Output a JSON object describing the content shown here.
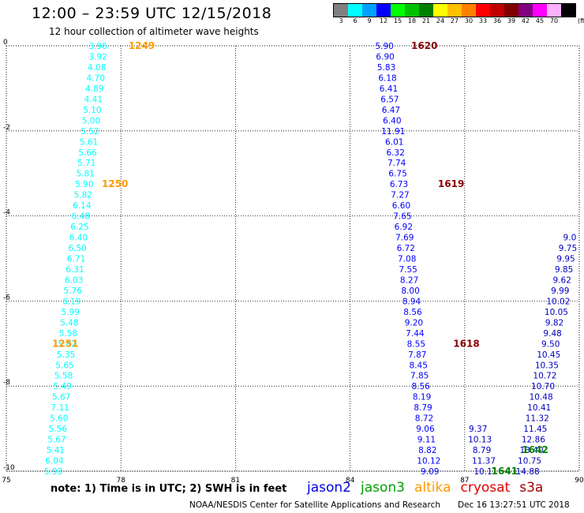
{
  "header": {
    "title": "12:00 – 23:59 UTC 12/15/2018",
    "subtitle": "12 hour collection of altimeter wave heights"
  },
  "legend": {
    "unit": "(ft)",
    "bins": [
      {
        "label": "3",
        "color": "#808080"
      },
      {
        "label": "6",
        "color": "#00ffff"
      },
      {
        "label": "9",
        "color": "#00a0ff"
      },
      {
        "label": "12",
        "color": "#0000ff"
      },
      {
        "label": "15",
        "color": "#00ff00"
      },
      {
        "label": "18",
        "color": "#00c000"
      },
      {
        "label": "21",
        "color": "#008000"
      },
      {
        "label": "24",
        "color": "#ffff00"
      },
      {
        "label": "27",
        "color": "#ffc000"
      },
      {
        "label": "30",
        "color": "#ff8000"
      },
      {
        "label": "33",
        "color": "#ff0000"
      },
      {
        "label": "36",
        "color": "#c00000"
      },
      {
        "label": "39",
        "color": "#800000"
      },
      {
        "label": "42",
        "color": "#800080"
      },
      {
        "label": "45",
        "color": "#ff00ff"
      },
      {
        "label": "70",
        "color": "#ffb0ff"
      },
      {
        "label": "",
        "color": "#000000"
      }
    ]
  },
  "footer": {
    "note": "note:  1) Time is in UTC;  2) SWH is in feet",
    "missions": [
      {
        "name": "jason2",
        "color": "#0000e0"
      },
      {
        "name": "jason3",
        "color": "#00a000"
      },
      {
        "name": "altika",
        "color": "#ff9900"
      },
      {
        "name": "cryosat",
        "color": "#e00000"
      },
      {
        "name": "s3a",
        "color": "#a00000"
      }
    ],
    "agency": "NOAA/NESDIS Center for Satellite Applications and Research",
    "stamp": "Dec 16 13:27:51 UTC 2018"
  },
  "chart_data": {
    "type": "scatter",
    "xlim": [
      75,
      90
    ],
    "ylim": [
      -10,
      0
    ],
    "xticks": [
      75,
      78,
      81,
      84,
      87,
      90
    ],
    "xticklabels": [
      "75",
      "78",
      "81",
      "84",
      "87",
      "90"
    ],
    "yticks": [
      0,
      -2,
      -4,
      -6,
      -8,
      -10
    ],
    "yticklabels": [
      "0",
      "-2",
      "-4",
      "-6",
      "-8",
      "-10"
    ],
    "grid": true,
    "series": [
      {
        "color": "#00ffff",
        "points": [
          {
            "x": 77.4,
            "y": 0.0,
            "v": "3.96"
          },
          {
            "x": 77.4,
            "y": -0.25,
            "v": "3.92"
          },
          {
            "x": 77.37,
            "y": -0.5,
            "v": "4.08"
          },
          {
            "x": 77.34,
            "y": -0.75,
            "v": "4.70"
          },
          {
            "x": 77.31,
            "y": -1.0,
            "v": "4.89"
          },
          {
            "x": 77.28,
            "y": -1.25,
            "v": "4.41"
          },
          {
            "x": 77.25,
            "y": -1.5,
            "v": "5.10"
          },
          {
            "x": 77.22,
            "y": -1.75,
            "v": "5.00"
          },
          {
            "x": 77.19,
            "y": -2.0,
            "v": "5.52"
          },
          {
            "x": 77.16,
            "y": -2.25,
            "v": "5.61"
          },
          {
            "x": 77.13,
            "y": -2.5,
            "v": "5.66"
          },
          {
            "x": 77.1,
            "y": -2.75,
            "v": "5.71"
          },
          {
            "x": 77.07,
            "y": -3.0,
            "v": "5.81"
          },
          {
            "x": 77.04,
            "y": -3.25,
            "v": "5.90"
          },
          {
            "x": 77.01,
            "y": -3.5,
            "v": "5.82"
          },
          {
            "x": 76.98,
            "y": -3.75,
            "v": "6.14"
          },
          {
            "x": 76.95,
            "y": -4.0,
            "v": "6.48"
          },
          {
            "x": 76.92,
            "y": -4.25,
            "v": "6.25"
          },
          {
            "x": 76.89,
            "y": -4.5,
            "v": "6.40"
          },
          {
            "x": 76.86,
            "y": -4.75,
            "v": "6.50"
          },
          {
            "x": 76.83,
            "y": -5.0,
            "v": "6.71"
          },
          {
            "x": 76.8,
            "y": -5.25,
            "v": "6.31"
          },
          {
            "x": 76.77,
            "y": -5.5,
            "v": "6.03"
          },
          {
            "x": 76.74,
            "y": -5.75,
            "v": "5.76"
          },
          {
            "x": 76.71,
            "y": -6.0,
            "v": "6.19"
          },
          {
            "x": 76.68,
            "y": -6.25,
            "v": "5.99"
          },
          {
            "x": 76.65,
            "y": -6.5,
            "v": "5.48"
          },
          {
            "x": 76.62,
            "y": -6.75,
            "v": "5.58"
          },
          {
            "x": 76.59,
            "y": -7.0,
            "v": "5.82"
          },
          {
            "x": 76.56,
            "y": -7.25,
            "v": "5.35"
          },
          {
            "x": 76.53,
            "y": -7.5,
            "v": "5.65"
          },
          {
            "x": 76.5,
            "y": -7.75,
            "v": "5.58"
          },
          {
            "x": 76.47,
            "y": -8.0,
            "v": "5.49"
          },
          {
            "x": 76.44,
            "y": -8.25,
            "v": "5.67"
          },
          {
            "x": 76.41,
            "y": -8.5,
            "v": "7.11"
          },
          {
            "x": 76.38,
            "y": -8.75,
            "v": "5.60"
          },
          {
            "x": 76.35,
            "y": -9.0,
            "v": "5.56"
          },
          {
            "x": 76.32,
            "y": -9.25,
            "v": "5.67"
          },
          {
            "x": 76.29,
            "y": -9.5,
            "v": "5.41"
          },
          {
            "x": 76.26,
            "y": -9.75,
            "v": "6.04"
          },
          {
            "x": 76.23,
            "y": -10.0,
            "v": "5.93"
          }
        ]
      },
      {
        "color": "#0000ff",
        "points": [
          {
            "x": 84.9,
            "y": 0.0,
            "v": "5.90"
          },
          {
            "x": 84.92,
            "y": -0.25,
            "v": "6.90"
          },
          {
            "x": 84.95,
            "y": -0.5,
            "v": "5.83"
          },
          {
            "x": 84.98,
            "y": -0.75,
            "v": "6.18"
          },
          {
            "x": 85.01,
            "y": -1.0,
            "v": "6.41"
          },
          {
            "x": 85.04,
            "y": -1.25,
            "v": "6.57"
          },
          {
            "x": 85.07,
            "y": -1.5,
            "v": "6.47"
          },
          {
            "x": 85.1,
            "y": -1.75,
            "v": "6.40"
          },
          {
            "x": 85.13,
            "y": -2.0,
            "v": "11.91"
          },
          {
            "x": 85.16,
            "y": -2.25,
            "v": "6.01"
          },
          {
            "x": 85.19,
            "y": -2.5,
            "v": "6.32"
          },
          {
            "x": 85.22,
            "y": -2.75,
            "v": "7.74"
          },
          {
            "x": 85.25,
            "y": -3.0,
            "v": "6.75"
          },
          {
            "x": 85.28,
            "y": -3.25,
            "v": "6.73"
          },
          {
            "x": 85.31,
            "y": -3.5,
            "v": "7.27"
          },
          {
            "x": 85.34,
            "y": -3.75,
            "v": "6.60"
          },
          {
            "x": 85.37,
            "y": -4.0,
            "v": "7.65"
          },
          {
            "x": 85.4,
            "y": -4.25,
            "v": "6.92"
          },
          {
            "x": 85.43,
            "y": -4.5,
            "v": "7.69"
          },
          {
            "x": 85.46,
            "y": -4.75,
            "v": "6.72"
          },
          {
            "x": 85.49,
            "y": -5.0,
            "v": "7.08"
          },
          {
            "x": 85.52,
            "y": -5.25,
            "v": "7.55"
          },
          {
            "x": 85.55,
            "y": -5.5,
            "v": "8.27"
          },
          {
            "x": 85.58,
            "y": -5.75,
            "v": "8.00"
          },
          {
            "x": 85.61,
            "y": -6.0,
            "v": "8.94"
          },
          {
            "x": 85.64,
            "y": -6.25,
            "v": "8.56"
          },
          {
            "x": 85.67,
            "y": -6.5,
            "v": "9.20"
          },
          {
            "x": 85.7,
            "y": -6.75,
            "v": "7.44"
          },
          {
            "x": 85.73,
            "y": -7.0,
            "v": "8.55"
          },
          {
            "x": 85.76,
            "y": -7.25,
            "v": "7.87"
          },
          {
            "x": 85.79,
            "y": -7.5,
            "v": "8.45"
          },
          {
            "x": 85.82,
            "y": -7.75,
            "v": "7.85"
          },
          {
            "x": 85.85,
            "y": -8.0,
            "v": "8.56"
          },
          {
            "x": 85.88,
            "y": -8.25,
            "v": "8.19"
          },
          {
            "x": 85.91,
            "y": -8.5,
            "v": "8.79"
          },
          {
            "x": 85.94,
            "y": -8.75,
            "v": "8.72"
          },
          {
            "x": 85.97,
            "y": -9.0,
            "v": "9.06"
          },
          {
            "x": 86.0,
            "y": -9.25,
            "v": "9.11"
          },
          {
            "x": 86.03,
            "y": -9.5,
            "v": "8.82"
          },
          {
            "x": 86.06,
            "y": -9.75,
            "v": "10.12"
          },
          {
            "x": 86.09,
            "y": -10.0,
            "v": "9.09"
          }
        ]
      },
      {
        "color": "#0000c0",
        "points": [
          {
            "x": 89.75,
            "y": -4.5,
            "v": "9.0"
          },
          {
            "x": 89.7,
            "y": -4.75,
            "v": "9.75"
          },
          {
            "x": 89.65,
            "y": -5.0,
            "v": "9.95"
          },
          {
            "x": 89.6,
            "y": -5.25,
            "v": "9.85"
          },
          {
            "x": 89.55,
            "y": -5.5,
            "v": "9.62"
          },
          {
            "x": 89.5,
            "y": -5.75,
            "v": "9.99"
          },
          {
            "x": 89.45,
            "y": -6.0,
            "v": "10.02"
          },
          {
            "x": 89.4,
            "y": -6.25,
            "v": "10.05"
          },
          {
            "x": 89.35,
            "y": -6.5,
            "v": "9.82"
          },
          {
            "x": 89.3,
            "y": -6.75,
            "v": "9.48"
          },
          {
            "x": 89.25,
            "y": -7.0,
            "v": "9.50"
          },
          {
            "x": 89.2,
            "y": -7.25,
            "v": "10.45"
          },
          {
            "x": 89.15,
            "y": -7.5,
            "v": "10.35"
          },
          {
            "x": 89.1,
            "y": -7.75,
            "v": "10.72"
          },
          {
            "x": 89.05,
            "y": -8.0,
            "v": "10.70"
          },
          {
            "x": 89.0,
            "y": -8.25,
            "v": "10.48"
          },
          {
            "x": 88.95,
            "y": -8.5,
            "v": "10.41"
          },
          {
            "x": 88.9,
            "y": -8.75,
            "v": "11.32"
          },
          {
            "x": 88.85,
            "y": -9.0,
            "v": "11.45"
          },
          {
            "x": 88.8,
            "y": -9.25,
            "v": "12.86"
          },
          {
            "x": 88.75,
            "y": -9.5,
            "v": "13.40"
          },
          {
            "x": 88.7,
            "y": -9.75,
            "v": "10.75"
          },
          {
            "x": 88.65,
            "y": -10.0,
            "v": "14.88"
          }
        ]
      },
      {
        "color": "#0000c0",
        "points": [
          {
            "x": 87.4,
            "y": -9.25,
            "v": "10.13"
          },
          {
            "x": 87.45,
            "y": -9.5,
            "v": "8.79"
          },
          {
            "x": 87.5,
            "y": -9.75,
            "v": "11.37"
          },
          {
            "x": 87.55,
            "y": -10.0,
            "v": "10.11"
          },
          {
            "x": 87.35,
            "y": -9.0,
            "v": "9.37"
          }
        ]
      }
    ],
    "labels": [
      {
        "x": 78.2,
        "y": 0.0,
        "text": "1249",
        "color": "#ff9900"
      },
      {
        "x": 77.5,
        "y": -3.25,
        "text": "1250",
        "color": "#ff9900"
      },
      {
        "x": 76.2,
        "y": -7.0,
        "text": "1251",
        "color": "#ff9900"
      },
      {
        "x": 85.6,
        "y": 0.0,
        "text": "1620",
        "color": "#8b0000"
      },
      {
        "x": 86.3,
        "y": -3.25,
        "text": "1619",
        "color": "#8b0000"
      },
      {
        "x": 86.7,
        "y": -7.0,
        "text": "1618",
        "color": "#8b0000"
      },
      {
        "x": 88.5,
        "y": -9.5,
        "text": "1642",
        "color": "#008000"
      },
      {
        "x": 87.7,
        "y": -10.0,
        "text": "1641",
        "color": "#008000"
      }
    ]
  }
}
